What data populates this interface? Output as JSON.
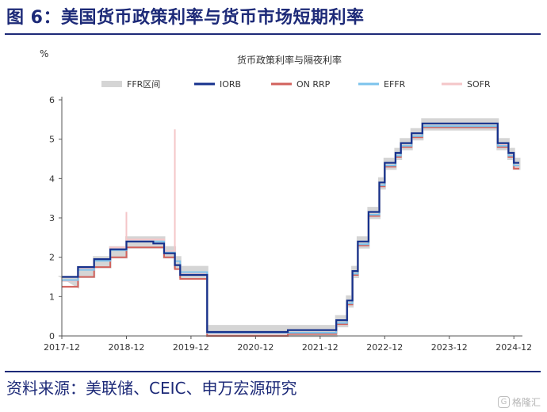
{
  "figure": {
    "title": "图 6：美国货币政策利率与货币市场短期利率",
    "source": "资料来源：美联储、CEIC、申万宏源研究",
    "watermark": "格隆汇"
  },
  "chart_data": {
    "type": "line",
    "title": "货币政策利率与隔夜利率",
    "ylabel": "%",
    "xlabel": "",
    "ylim": [
      0,
      6
    ],
    "yticks": [
      0,
      1,
      2,
      3,
      4,
      5,
      6
    ],
    "xlim": [
      "2017-12",
      "2025-01"
    ],
    "xticks": [
      "2017-12",
      "2018-12",
      "2019-12",
      "2020-12",
      "2021-12",
      "2022-12",
      "2023-12",
      "2024-12"
    ],
    "grid": false,
    "legend_position": "top",
    "colors": {
      "ffr_band": "#d5d5d5",
      "iorb": "#16318d",
      "on_rrp": "#d2625c",
      "effr": "#7cc3ec",
      "sofr": "#f4c6c8"
    },
    "series": [
      {
        "name": "FFR区间",
        "kind": "band",
        "x": [
          "2017-12",
          "2018-03",
          "2018-06",
          "2018-09",
          "2018-12",
          "2019-07",
          "2019-09",
          "2019-10",
          "2020-03",
          "2020-03",
          "2022-03",
          "2022-05",
          "2022-06",
          "2022-07",
          "2022-09",
          "2022-11",
          "2022-12",
          "2023-02",
          "2023-03",
          "2023-05",
          "2023-07",
          "2024-09",
          "2024-11",
          "2024-12",
          "2025-01"
        ],
        "low": [
          1.25,
          1.5,
          1.75,
          2.0,
          2.25,
          2.0,
          1.75,
          1.5,
          1.0,
          0.0,
          0.25,
          0.75,
          1.5,
          2.25,
          3.0,
          3.75,
          4.25,
          4.5,
          4.75,
          5.0,
          5.25,
          4.75,
          4.5,
          4.25,
          4.25
        ],
        "high": [
          1.5,
          1.75,
          2.0,
          2.25,
          2.5,
          2.25,
          2.0,
          1.75,
          1.25,
          0.25,
          0.5,
          1.0,
          1.75,
          2.5,
          3.25,
          4.0,
          4.5,
          4.75,
          5.0,
          5.25,
          5.5,
          5.0,
          4.75,
          4.5,
          4.5
        ]
      },
      {
        "name": "IORB",
        "x": [
          "2017-12",
          "2018-03",
          "2018-06",
          "2018-09",
          "2018-12",
          "2019-05",
          "2019-07",
          "2019-09",
          "2019-10",
          "2020-03",
          "2020-03",
          "2021-06",
          "2022-03",
          "2022-05",
          "2022-06",
          "2022-07",
          "2022-09",
          "2022-11",
          "2022-12",
          "2023-02",
          "2023-03",
          "2023-05",
          "2023-07",
          "2024-09",
          "2024-11",
          "2024-12",
          "2025-01"
        ],
        "values": [
          1.5,
          1.75,
          1.95,
          2.2,
          2.4,
          2.35,
          2.1,
          1.8,
          1.55,
          1.1,
          0.1,
          0.15,
          0.4,
          0.9,
          1.65,
          2.4,
          3.15,
          3.9,
          4.4,
          4.65,
          4.9,
          5.15,
          5.4,
          4.9,
          4.65,
          4.4,
          4.4
        ]
      },
      {
        "name": "ON RRP",
        "x": [
          "2017-12",
          "2018-03",
          "2018-06",
          "2018-09",
          "2018-12",
          "2019-07",
          "2019-09",
          "2019-10",
          "2020-03",
          "2020-03",
          "2021-06",
          "2022-03",
          "2022-05",
          "2022-06",
          "2022-07",
          "2022-09",
          "2022-11",
          "2022-12",
          "2023-02",
          "2023-03",
          "2023-05",
          "2023-07",
          "2024-09",
          "2024-11",
          "2024-12",
          "2025-01"
        ],
        "values": [
          1.25,
          1.5,
          1.75,
          2.0,
          2.25,
          2.0,
          1.7,
          1.45,
          1.0,
          0.0,
          0.05,
          0.3,
          0.8,
          1.55,
          2.3,
          3.05,
          3.8,
          4.3,
          4.55,
          4.8,
          5.05,
          5.3,
          4.8,
          4.55,
          4.25,
          4.25
        ]
      },
      {
        "name": "EFFR",
        "x": [
          "2017-12",
          "2018-03",
          "2018-06",
          "2018-09",
          "2018-12",
          "2019-07",
          "2019-09",
          "2019-10",
          "2020-03",
          "2020-03",
          "2021-06",
          "2022-03",
          "2022-05",
          "2022-06",
          "2022-07",
          "2022-09",
          "2022-11",
          "2022-12",
          "2023-02",
          "2023-03",
          "2023-05",
          "2023-07",
          "2024-09",
          "2024-11",
          "2024-12",
          "2025-01"
        ],
        "values": [
          1.42,
          1.68,
          1.91,
          2.18,
          2.4,
          2.12,
          1.9,
          1.62,
          1.1,
          0.08,
          0.08,
          0.33,
          0.83,
          1.58,
          2.33,
          3.08,
          3.83,
          4.33,
          4.58,
          4.83,
          5.08,
          5.33,
          4.83,
          4.58,
          4.33,
          4.33
        ]
      },
      {
        "name": "SOFR",
        "x": [
          "2017-12",
          "2018-03",
          "2018-06",
          "2018-09",
          "2018-12",
          "2019-05",
          "2019-07",
          "2019-09",
          "2019-10",
          "2020-03",
          "2020-03",
          "2021-06",
          "2022-03",
          "2022-05",
          "2022-06",
          "2022-07",
          "2022-09",
          "2022-11",
          "2022-12",
          "2023-02",
          "2023-03",
          "2023-05",
          "2023-07",
          "2024-09",
          "2024-11",
          "2024-12",
          "2025-01"
        ],
        "values": [
          1.4,
          1.7,
          1.95,
          2.25,
          2.45,
          2.45,
          2.15,
          1.9,
          1.6,
          1.05,
          0.05,
          0.05,
          0.3,
          0.8,
          1.55,
          2.3,
          3.05,
          3.8,
          4.3,
          4.55,
          4.8,
          5.05,
          5.31,
          4.85,
          4.6,
          4.3,
          4.3
        ],
        "spikes": [
          {
            "x": "2018-12",
            "value": 3.15
          },
          {
            "x": "2019-09",
            "value": 5.25
          }
        ]
      }
    ]
  }
}
